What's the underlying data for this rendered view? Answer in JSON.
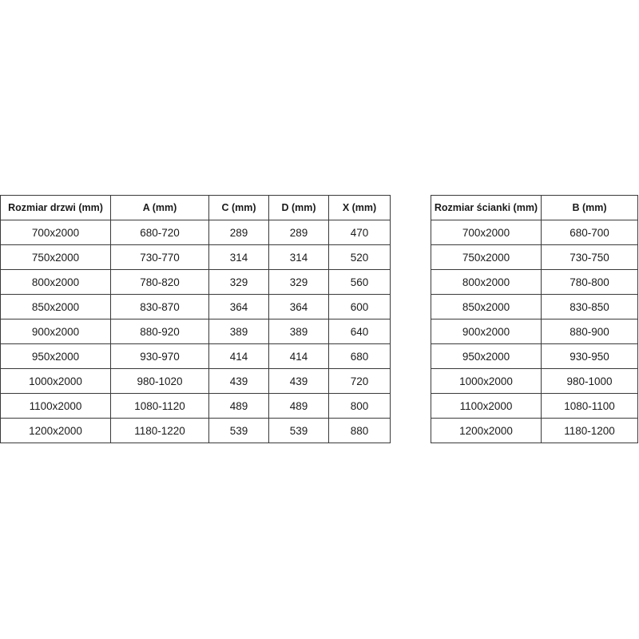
{
  "doors_table": {
    "headers": [
      "Rozmiar drzwi (mm)",
      "A (mm)",
      "C (mm)",
      "D (mm)",
      "X (mm)"
    ],
    "rows": [
      [
        "700x2000",
        "680-720",
        "289",
        "289",
        "470"
      ],
      [
        "750x2000",
        "730-770",
        "314",
        "314",
        "520"
      ],
      [
        "800x2000",
        "780-820",
        "329",
        "329",
        "560"
      ],
      [
        "850x2000",
        "830-870",
        "364",
        "364",
        "600"
      ],
      [
        "900x2000",
        "880-920",
        "389",
        "389",
        "640"
      ],
      [
        "950x2000",
        "930-970",
        "414",
        "414",
        "680"
      ],
      [
        "1000x2000",
        "980-1020",
        "439",
        "439",
        "720"
      ],
      [
        "1100x2000",
        "1080-1120",
        "489",
        "489",
        "800"
      ],
      [
        "1200x2000",
        "1180-1220",
        "539",
        "539",
        "880"
      ]
    ]
  },
  "wall_table": {
    "headers": [
      "Rozmiar ścianki (mm)",
      "B (mm)"
    ],
    "rows": [
      [
        "700x2000",
        "680-700"
      ],
      [
        "750x2000",
        "730-750"
      ],
      [
        "800x2000",
        "780-800"
      ],
      [
        "850x2000",
        "830-850"
      ],
      [
        "900x2000",
        "880-900"
      ],
      [
        "950x2000",
        "930-950"
      ],
      [
        "1000x2000",
        "980-1000"
      ],
      [
        "1100x2000",
        "1080-1100"
      ],
      [
        "1200x2000",
        "1180-1200"
      ]
    ]
  }
}
